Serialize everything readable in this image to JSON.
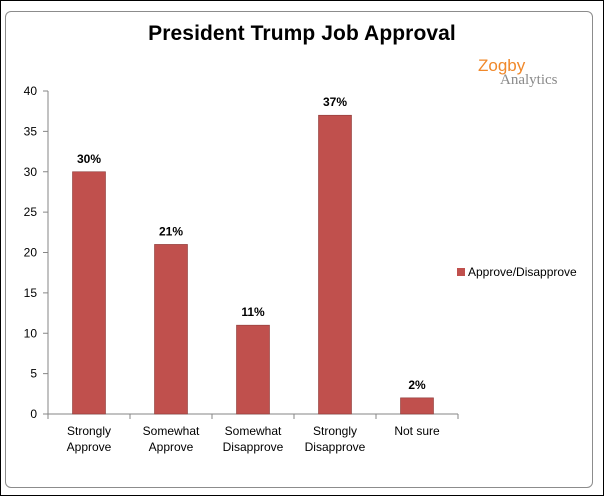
{
  "logo": {
    "line1": "Zogby",
    "line2": "Analytics"
  },
  "colors": {
    "bar": "#c0504d",
    "bar_border": "#8b3a38",
    "axis": "#868686",
    "logo_orange": "#f0882a"
  },
  "chart_data": {
    "type": "bar",
    "title": "President Trump Job Approval",
    "categories": [
      [
        "Strongly",
        "Approve"
      ],
      [
        "Somewhat",
        "Approve"
      ],
      [
        "Somewhat",
        "Disapprove"
      ],
      [
        "Strongly",
        "Disapprove"
      ],
      [
        "Not sure"
      ]
    ],
    "series": [
      {
        "name": "Approve/Disapprove",
        "values": [
          30,
          21,
          11,
          37,
          2
        ],
        "data_labels": [
          "30%",
          "21%",
          "11%",
          "37%",
          "2%"
        ]
      }
    ],
    "ylim": [
      0,
      40
    ],
    "yticks": [
      0,
      5,
      10,
      15,
      20,
      25,
      30,
      35,
      40
    ],
    "grid": false,
    "legend_position": "right"
  }
}
